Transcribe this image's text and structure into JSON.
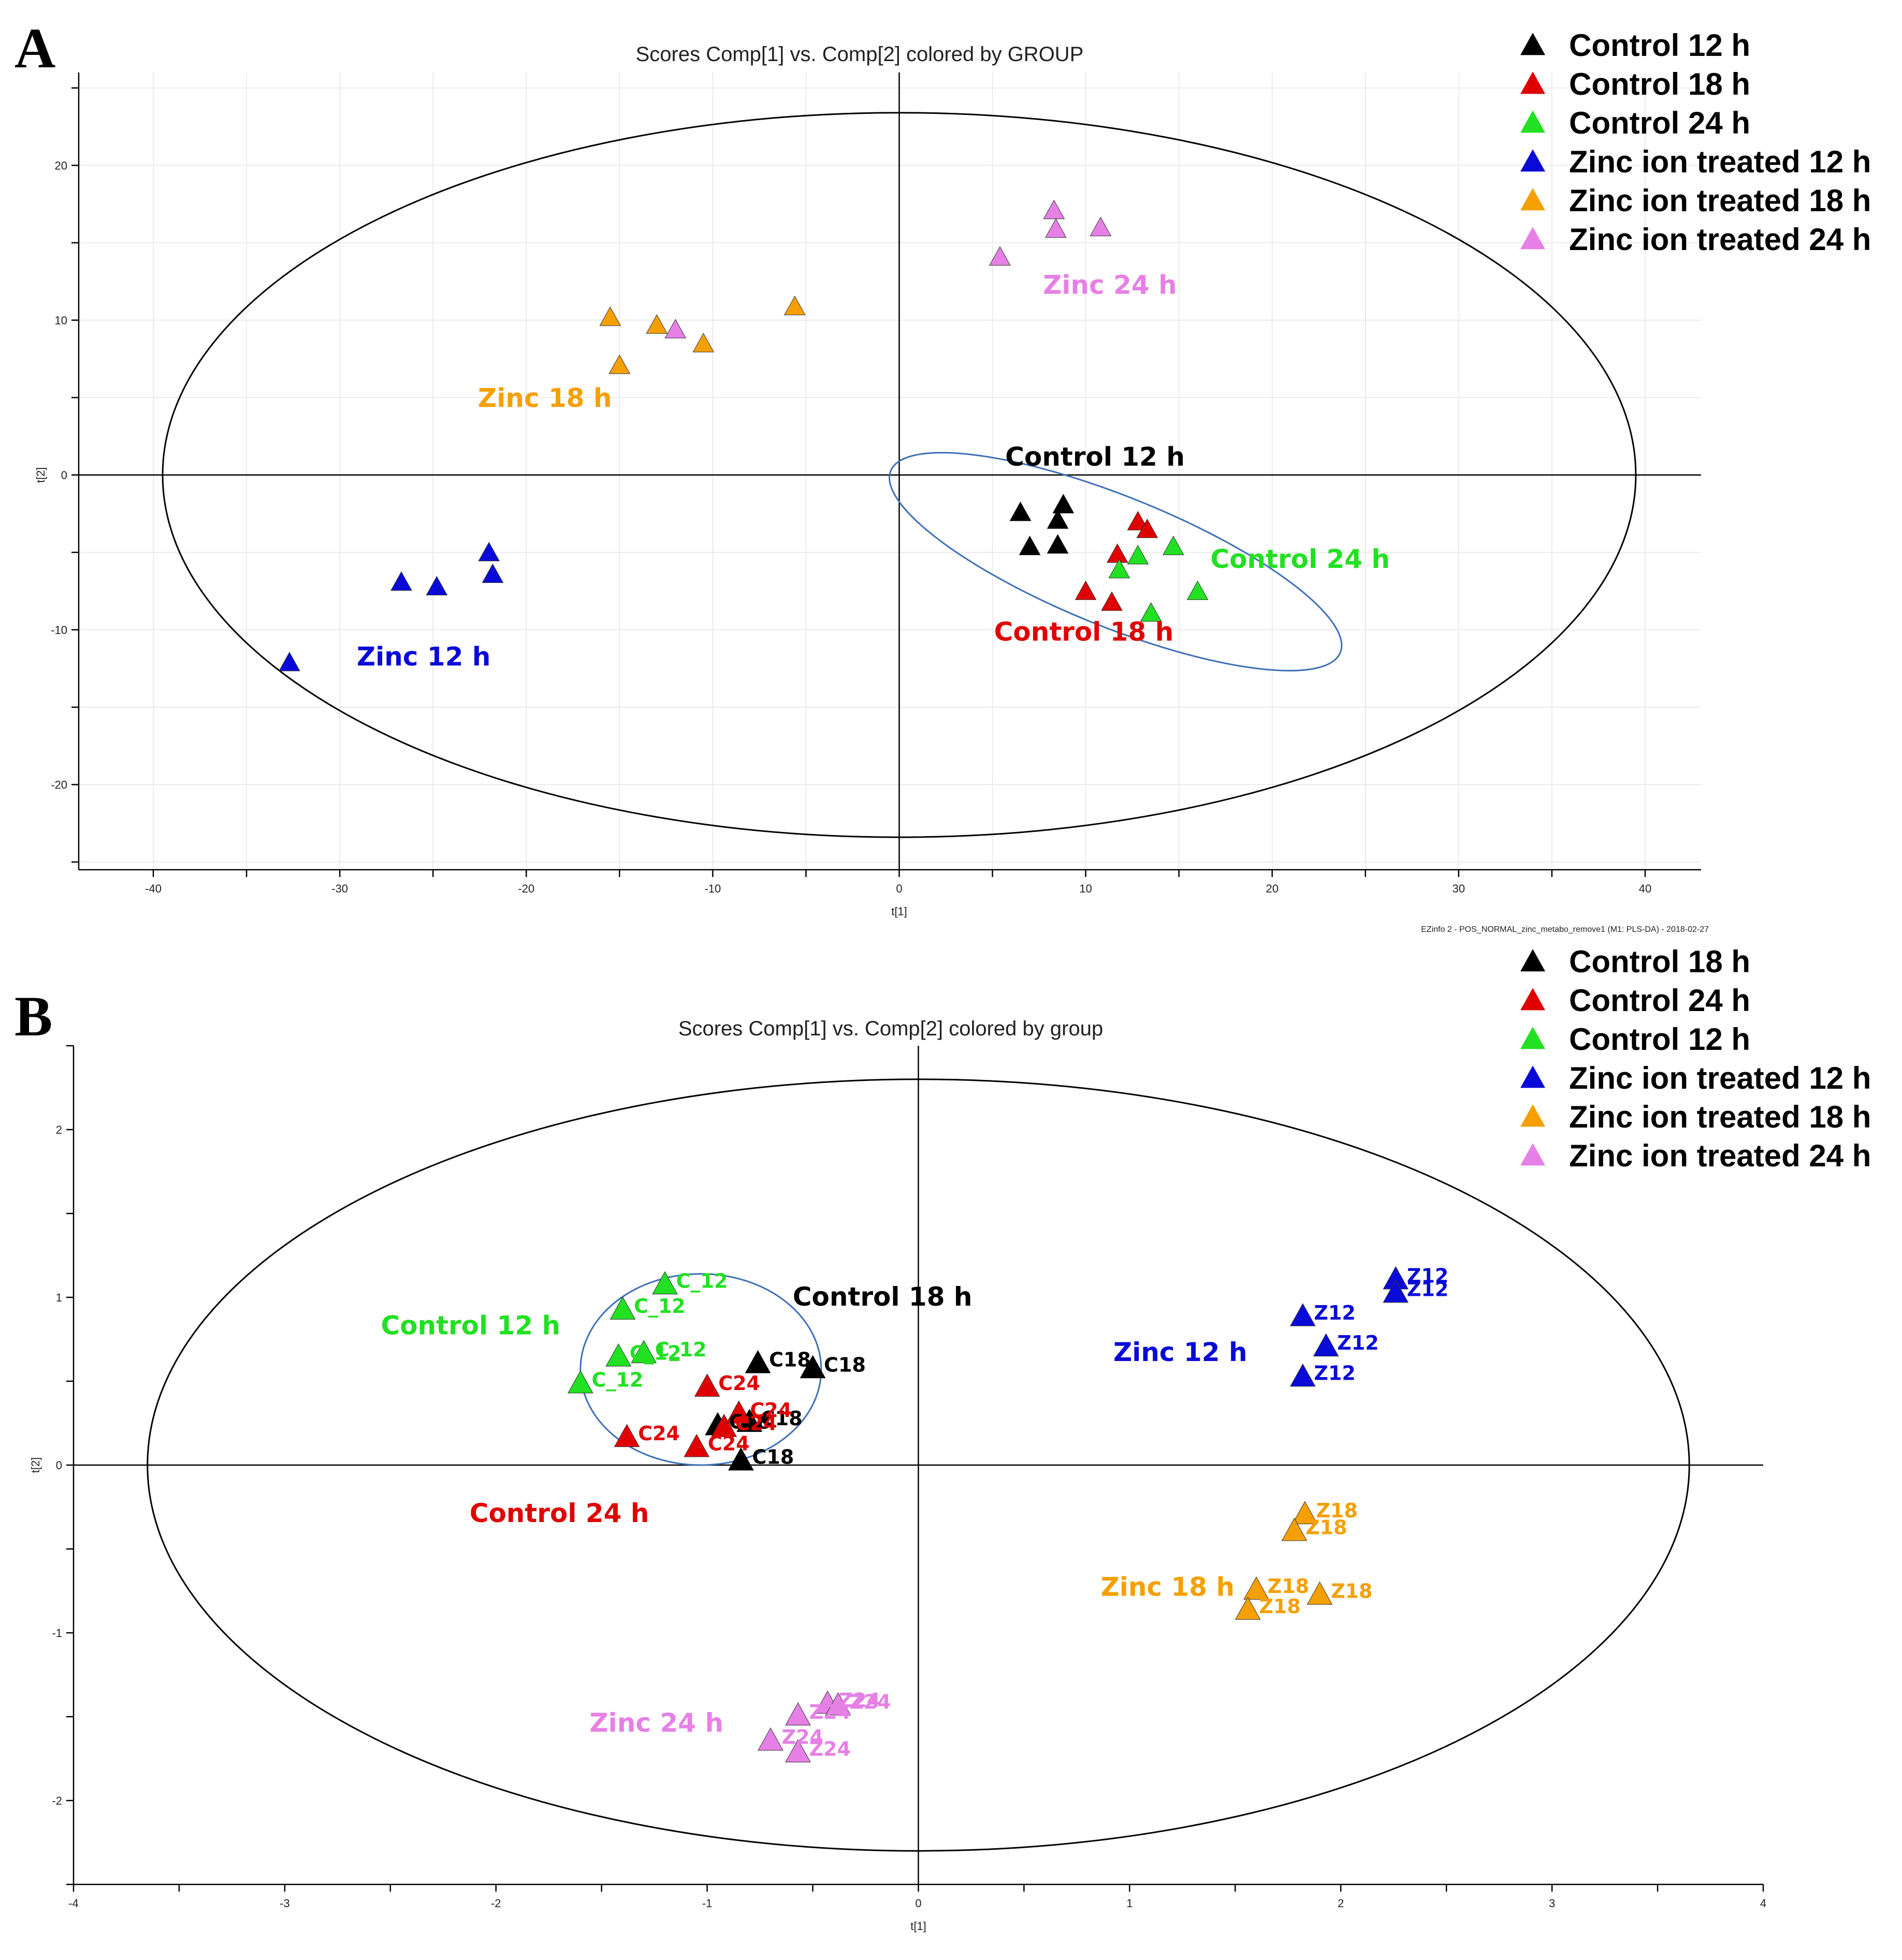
{
  "colors": {
    "black": "#000000",
    "red": "#e00000",
    "green": "#22e022",
    "blue": "#0a0ad8",
    "orange": "#f5a000",
    "pink": "#e680e6"
  },
  "chart_data": [
    {
      "panel": "A",
      "type": "scatter",
      "title": "Scores Comp[1] vs. Comp[2] colored by GROUP",
      "xlabel": "t[1]",
      "ylabel": "t[2]",
      "xlim": [
        -44,
        43
      ],
      "ylim": [
        -25.5,
        26
      ],
      "xticks": [
        -40,
        -30,
        -20,
        -10,
        0,
        10,
        20,
        30,
        40
      ],
      "yticks": [
        -20,
        -10,
        0,
        10,
        20
      ],
      "grid": true,
      "footer": "EZinfo 2 - POS_NORMAL_zinc_metabo_remove1 (M1: PLS-DA) - 2018-02-27",
      "hotelling_ellipse": {
        "cx": 0,
        "cy": 0,
        "rx": 39.5,
        "ry": 23.4
      },
      "cluster_ellipse": {
        "cx": 11.6,
        "cy": -5.6,
        "rx": 13,
        "ry": 4.2
      },
      "legend": [
        {
          "label": "Control 12 h",
          "color": "black"
        },
        {
          "label": "Control 18 h",
          "color": "red"
        },
        {
          "label": "Control 24 h",
          "color": "green"
        },
        {
          "label": "Zinc ion treated 12 h",
          "color": "blue"
        },
        {
          "label": "Zinc ion treated 18 h",
          "color": "orange"
        },
        {
          "label": "Zinc ion treated 24 h",
          "color": "pink"
        }
      ],
      "series": [
        {
          "name": "Control 12 h",
          "color": "black",
          "points": [
            [
              6.5,
              -2.5
            ],
            [
              8.8,
              -2.0
            ],
            [
              8.5,
              -3.0
            ],
            [
              7.0,
              -4.7
            ],
            [
              8.5,
              -4.6
            ]
          ]
        },
        {
          "name": "Control 18 h",
          "color": "red",
          "points": [
            [
              12.8,
              -3.1
            ],
            [
              13.3,
              -3.6
            ],
            [
              11.7,
              -5.2
            ],
            [
              10.0,
              -7.6
            ],
            [
              11.4,
              -8.3
            ]
          ]
        },
        {
          "name": "Control 24 h",
          "color": "green",
          "points": [
            [
              14.7,
              -4.7
            ],
            [
              12.8,
              -5.3
            ],
            [
              11.8,
              -6.2
            ],
            [
              16.0,
              -7.6
            ],
            [
              13.5,
              -9.0
            ]
          ]
        },
        {
          "name": "Zinc ion treated 12 h",
          "color": "blue",
          "points": [
            [
              -22.0,
              -5.1
            ],
            [
              -21.8,
              -6.5
            ],
            [
              -26.7,
              -7.0
            ],
            [
              -24.8,
              -7.3
            ],
            [
              -32.7,
              -12.2
            ]
          ]
        },
        {
          "name": "Zinc ion treated 18 h",
          "color": "orange",
          "points": [
            [
              -15.5,
              10.1
            ],
            [
              -13.0,
              9.6
            ],
            [
              -10.5,
              8.4
            ],
            [
              -15.0,
              7.0
            ],
            [
              -5.6,
              10.8
            ]
          ]
        },
        {
          "name": "Zinc ion treated 24 h",
          "color": "pink",
          "points": [
            [
              8.3,
              17.0
            ],
            [
              8.4,
              15.8
            ],
            [
              10.8,
              15.9
            ],
            [
              5.4,
              14.0
            ],
            [
              -12.0,
              9.3
            ]
          ]
        }
      ],
      "group_labels": [
        {
          "text": "Control 12 h",
          "x": 10.5,
          "y": 0.6,
          "color": "black"
        },
        {
          "text": "Control 24 h",
          "x": 21.5,
          "y": -6.0,
          "color": "green"
        },
        {
          "text": "Control 18 h",
          "x": 9.9,
          "y": -10.7,
          "color": "red"
        },
        {
          "text": "Zinc 24 h",
          "x": 11.3,
          "y": 11.7,
          "color": "pink"
        },
        {
          "text": "Zinc 18 h",
          "x": -19.0,
          "y": 4.4,
          "color": "orange"
        },
        {
          "text": "Zinc 12 h",
          "x": -25.5,
          "y": -12.3,
          "color": "blue"
        }
      ],
      "point_labels": []
    },
    {
      "panel": "B",
      "type": "scatter",
      "title": "Scores Comp[1] vs. Comp[2] colored by group",
      "xlabel": "t[1]",
      "ylabel": "t[2]",
      "xlim": [
        -4,
        4
      ],
      "ylim": [
        -2.5,
        2.5
      ],
      "xticks": [
        -4,
        -3,
        -2,
        -1,
        0,
        1,
        2,
        3,
        4
      ],
      "yticks": [
        -2,
        -1,
        0,
        1,
        2
      ],
      "grid": false,
      "footer": "",
      "hotelling_ellipse": {
        "cx": 0,
        "cy": 0,
        "rx": 3.65,
        "ry": 2.3
      },
      "cluster_ellipse": {
        "cx": -1.03,
        "cy": 0.57,
        "rx": 0.57,
        "ry": 0.57
      },
      "legend": [
        {
          "label": "Control 18 h",
          "color": "black"
        },
        {
          "label": "Control 24 h",
          "color": "red"
        },
        {
          "label": "Control 12 h",
          "color": "green"
        },
        {
          "label": "Zinc ion treated 12 h",
          "color": "blue"
        },
        {
          "label": "Zinc ion treated 18 h",
          "color": "orange"
        },
        {
          "label": "Zinc ion treated 24 h",
          "color": "pink"
        }
      ],
      "series": [
        {
          "name": "Control 18 h",
          "color": "black",
          "points": [
            [
              -0.76,
              0.6
            ],
            [
              -0.5,
              0.57
            ],
            [
              -0.95,
              0.23
            ],
            [
              -0.8,
              0.25
            ],
            [
              -0.84,
              0.02
            ]
          ]
        },
        {
          "name": "Control 24 h",
          "color": "red",
          "points": [
            [
              -1.0,
              0.46
            ],
            [
              -1.38,
              0.16
            ],
            [
              -1.05,
              0.1
            ],
            [
              -0.92,
              0.22
            ],
            [
              -0.85,
              0.3
            ]
          ]
        },
        {
          "name": "Control 12 h",
          "color": "green",
          "points": [
            [
              -1.2,
              1.07
            ],
            [
              -1.4,
              0.92
            ],
            [
              -1.42,
              0.64
            ],
            [
              -1.3,
              0.66
            ],
            [
              -1.6,
              0.48
            ]
          ]
        },
        {
          "name": "Zinc ion treated 12 h",
          "color": "blue",
          "points": [
            [
              2.26,
              1.1
            ],
            [
              2.26,
              1.02
            ],
            [
              1.82,
              0.88
            ],
            [
              1.93,
              0.7
            ],
            [
              1.82,
              0.52
            ]
          ]
        },
        {
          "name": "Zinc ion treated 18 h",
          "color": "orange",
          "points": [
            [
              1.83,
              -0.3
            ],
            [
              1.78,
              -0.4
            ],
            [
              1.6,
              -0.75
            ],
            [
              1.56,
              -0.87
            ],
            [
              1.9,
              -0.78
            ]
          ]
        },
        {
          "name": "Zinc ion treated 24 h",
          "color": "pink",
          "points": [
            [
              -0.43,
              -1.43
            ],
            [
              -0.57,
              -1.5
            ],
            [
              -0.7,
              -1.65
            ],
            [
              -0.57,
              -1.72
            ],
            [
              -0.38,
              -1.44
            ]
          ]
        }
      ],
      "group_labels": [
        {
          "text": "Control 18 h",
          "x": -0.17,
          "y": 0.95,
          "color": "black"
        },
        {
          "text": "Control 12 h",
          "x": -2.12,
          "y": 0.78,
          "color": "green"
        },
        {
          "text": "Control 24 h",
          "x": -1.7,
          "y": -0.34,
          "color": "red"
        },
        {
          "text": "Zinc 12 h",
          "x": 1.24,
          "y": 0.62,
          "color": "blue"
        },
        {
          "text": "Zinc 18 h",
          "x": 1.18,
          "y": -0.78,
          "color": "orange"
        },
        {
          "text": "Zinc 24 h",
          "x": -1.24,
          "y": -1.59,
          "color": "pink"
        }
      ],
      "point_labels": [
        {
          "text": "C_12",
          "series": 2,
          "point": 0
        },
        {
          "text": "C_12",
          "series": 2,
          "point": 1
        },
        {
          "text": "C_12",
          "series": 2,
          "point": 2
        },
        {
          "text": "C_12",
          "series": 2,
          "point": 3
        },
        {
          "text": "C_12",
          "series": 2,
          "point": 4
        },
        {
          "text": "C18",
          "series": 0,
          "point": 0
        },
        {
          "text": "C18",
          "series": 0,
          "point": 1
        },
        {
          "text": "C18",
          "series": 0,
          "point": 2
        },
        {
          "text": "C18",
          "series": 0,
          "point": 3
        },
        {
          "text": "C18",
          "series": 0,
          "point": 4
        },
        {
          "text": "C24",
          "series": 1,
          "point": 0
        },
        {
          "text": "C24",
          "series": 1,
          "point": 1
        },
        {
          "text": "C24",
          "series": 1,
          "point": 2
        },
        {
          "text": "C24",
          "series": 1,
          "point": 3
        },
        {
          "text": "C24",
          "series": 1,
          "point": 4
        },
        {
          "text": "Z12",
          "series": 3,
          "point": 0
        },
        {
          "text": "Z12",
          "series": 3,
          "point": 1
        },
        {
          "text": "Z12",
          "series": 3,
          "point": 2
        },
        {
          "text": "Z12",
          "series": 3,
          "point": 3
        },
        {
          "text": "Z12",
          "series": 3,
          "point": 4
        },
        {
          "text": "Z18",
          "series": 4,
          "point": 0
        },
        {
          "text": "Z18",
          "series": 4,
          "point": 1
        },
        {
          "text": "Z18",
          "series": 4,
          "point": 2
        },
        {
          "text": "Z18",
          "series": 4,
          "point": 3
        },
        {
          "text": "Z18",
          "series": 4,
          "point": 4
        },
        {
          "text": "Z24",
          "series": 5,
          "point": 0
        },
        {
          "text": "Z24",
          "series": 5,
          "point": 1
        },
        {
          "text": "Z24",
          "series": 5,
          "point": 2
        },
        {
          "text": "Z24",
          "series": 5,
          "point": 3
        },
        {
          "text": "Z24",
          "series": 5,
          "point": 4
        }
      ]
    }
  ]
}
